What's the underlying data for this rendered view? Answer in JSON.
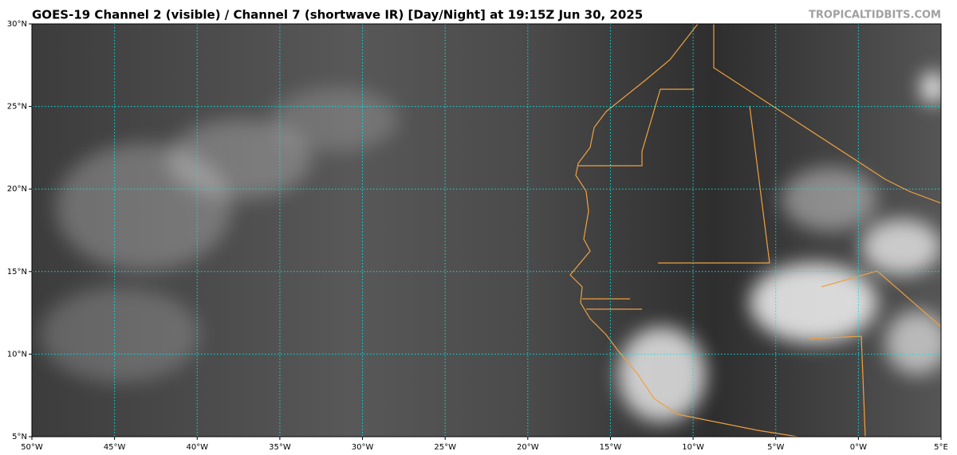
{
  "header": {
    "title": "GOES-19 Channel 2 (visible) / Channel 7 (shortwave IR) [Day/Night] at 19:15Z Jun 30, 2025",
    "watermark": "TROPICALTIDBITS.COM"
  },
  "map": {
    "lonlim": [
      -50,
      5
    ],
    "latlim": [
      5,
      30
    ],
    "lonticks": [
      {
        "value": -50,
        "label": "50°W"
      },
      {
        "value": -45,
        "label": "45°W"
      },
      {
        "value": -40,
        "label": "40°W"
      },
      {
        "value": -35,
        "label": "35°W"
      },
      {
        "value": -30,
        "label": "30°W"
      },
      {
        "value": -25,
        "label": "25°W"
      },
      {
        "value": -20,
        "label": "20°W"
      },
      {
        "value": -15,
        "label": "15°W"
      },
      {
        "value": -10,
        "label": "10°W"
      },
      {
        "value": -5,
        "label": "5°W"
      },
      {
        "value": 0,
        "label": "0°W"
      },
      {
        "value": 5,
        "label": "5°E"
      }
    ],
    "latticks": [
      {
        "value": 5,
        "label": "5°N"
      },
      {
        "value": 10,
        "label": "10°N"
      },
      {
        "value": 15,
        "label": "15°N"
      },
      {
        "value": 20,
        "label": "20°N"
      },
      {
        "value": 25,
        "label": "25°N"
      },
      {
        "value": 30,
        "label": "30°N"
      }
    ]
  }
}
